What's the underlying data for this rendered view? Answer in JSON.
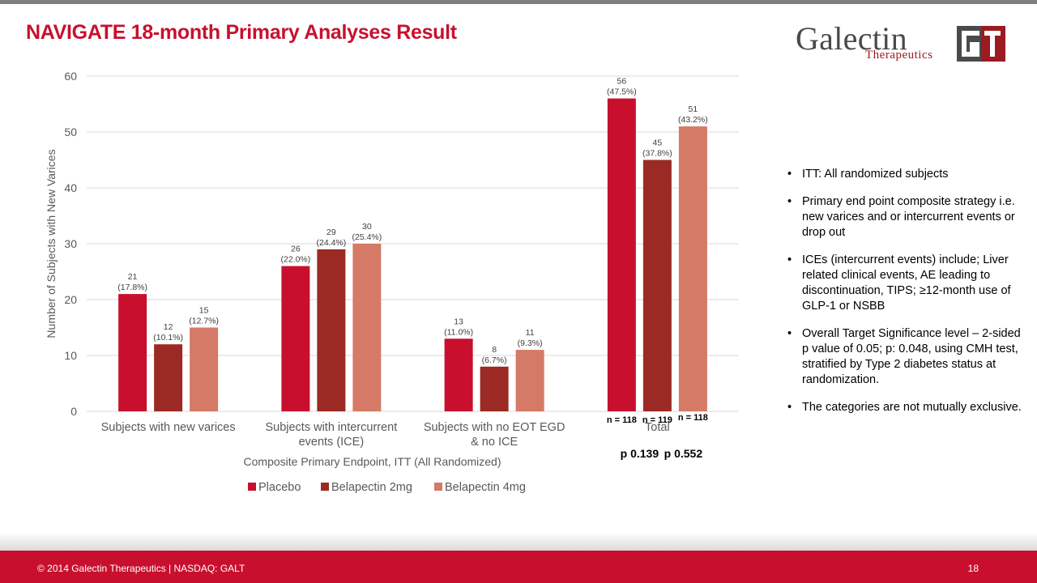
{
  "slide": {
    "title": "NAVIGATE 18-month Primary Analyses Result",
    "page_number": "18",
    "footer": "© 2014 Galectin Therapeutics  |  NASDAQ: GALT"
  },
  "logo": {
    "name": "Galectin",
    "subtitle": "Therapeutics",
    "mark": "GT"
  },
  "chart_data": {
    "type": "bar",
    "title": "",
    "xlabel": "Composite Primary Endpoint, ITT (All Randomized)",
    "ylabel": "Number of Subjects with New Varices",
    "ylim": [
      0,
      60
    ],
    "yticks": [
      0,
      10,
      20,
      30,
      40,
      50,
      60
    ],
    "grid": true,
    "legend_position": "bottom",
    "categories": [
      [
        "Subjects with new varices"
      ],
      [
        "Subjects with intercurrent",
        "events (ICE)"
      ],
      [
        "Subjects with no EOT EGD",
        "& no ICE"
      ],
      [
        "Total"
      ]
    ],
    "series": [
      {
        "name": "Placebo",
        "color": "#c8102e",
        "values": [
          21,
          26,
          13,
          56
        ],
        "labels": [
          "(17.8%)",
          "(22.0%)",
          "(11.0%)",
          "(47.5%)"
        ]
      },
      {
        "name": "Belapectin 2mg",
        "color": "#9b2a24",
        "values": [
          12,
          29,
          8,
          45
        ],
        "labels": [
          "(10.1%)",
          "(24.4%)",
          "(6.7%)",
          "(37.8%)"
        ]
      },
      {
        "name": "Belapectin 4mg",
        "color": "#d47a66",
        "values": [
          15,
          30,
          11,
          51
        ],
        "labels": [
          "(12.7%)",
          "(25.4%)",
          "(9.3%)",
          "(43.2%)"
        ]
      }
    ],
    "annotations": {
      "n_labels": [
        "n = 118",
        "n = 119",
        "n = 118"
      ],
      "p_values": [
        "p 0.139",
        "p 0.552"
      ]
    }
  },
  "notes": [
    "ITT: All randomized subjects",
    "Primary end point composite strategy i.e. new varices and or intercurrent events or drop out",
    "ICEs (intercurrent events) include; Liver related clinical events, AE leading to discontinuation, TIPS; ≥12-month use of GLP-1 or NSBB",
    "Overall Target Significance level – 2-sided p value of 0.05; p: 0.048, using CMH test, stratified by Type 2 diabetes status at randomization.",
    "The categories are not mutually exclusive."
  ]
}
